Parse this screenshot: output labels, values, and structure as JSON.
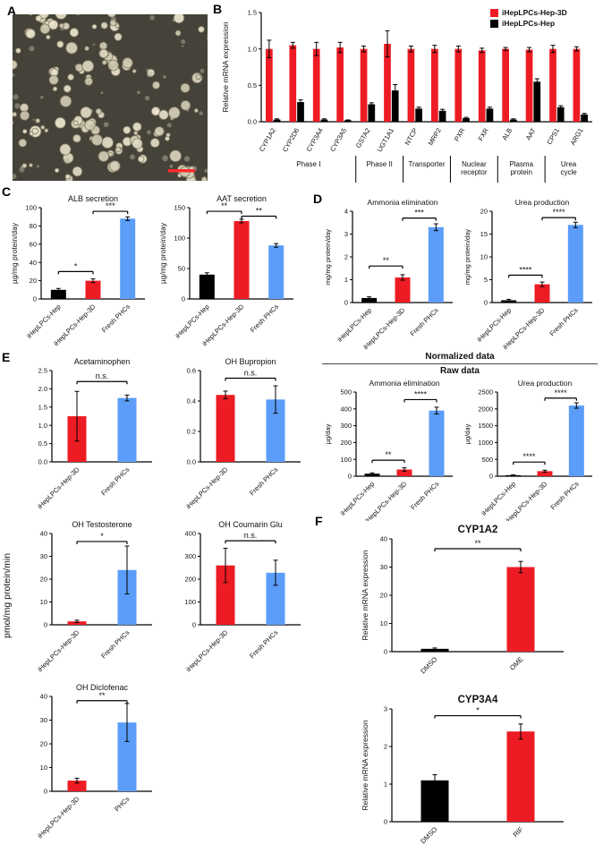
{
  "colors": {
    "red": "#ed1c24",
    "black": "#000000",
    "blue": "#5b9df8",
    "scalebar": "#ff2a2a"
  },
  "panels": {
    "A": {
      "label": "A"
    },
    "B": {
      "label": "B"
    },
    "C": {
      "label": "C"
    },
    "D": {
      "label": "D",
      "section_normalized": "Normalized data",
      "section_raw": "Raw data"
    },
    "E": {
      "label": "E",
      "shared_ylabel": "pmol/mg protein/min"
    },
    "F": {
      "label": "F"
    }
  },
  "legend": {
    "items": [
      {
        "label": "iHepLPCs-Hep-3D",
        "color": "red"
      },
      {
        "label": "iHepLPCs-Hep",
        "color": "black"
      }
    ]
  },
  "chart_data": [
    {
      "id": "B",
      "type": "bar",
      "title": "",
      "ylabel": "Relative mRNA expression",
      "ylim": [
        0,
        1.5
      ],
      "yticks": [
        0,
        0.5,
        1.0,
        1.5
      ],
      "ytick_labels": [
        "0.0",
        "0.5",
        "1.0",
        "1.5"
      ],
      "categories": [
        "CYP1A2",
        "CYP2D6",
        "CYP3A4",
        "CYP3A5",
        "GSTA2",
        "UGT1A1",
        "NTCP",
        "MRP2",
        "PXR",
        "FXR",
        "ALB",
        "AAT",
        "CPS1",
        "ARG1"
      ],
      "series": [
        {
          "name": "iHepLPCs-Hep-3D",
          "color": "red",
          "values": [
            1.0,
            1.05,
            1.0,
            1.02,
            1.0,
            1.07,
            1.0,
            1.0,
            1.0,
            0.98,
            1.0,
            0.99,
            1.0,
            1.0
          ],
          "errors": [
            0.12,
            0.04,
            0.09,
            0.07,
            0.04,
            0.18,
            0.04,
            0.05,
            0.04,
            0.03,
            0.02,
            0.03,
            0.05,
            0.03
          ]
        },
        {
          "name": "iHepLPCs-Hep",
          "color": "black",
          "values": [
            0.03,
            0.27,
            0.03,
            0.02,
            0.24,
            0.43,
            0.18,
            0.15,
            0.05,
            0.18,
            0.03,
            0.55,
            0.2,
            0.1
          ],
          "errors": [
            0.01,
            0.03,
            0.01,
            0.005,
            0.02,
            0.08,
            0.02,
            0.02,
            0.01,
            0.02,
            0.01,
            0.04,
            0.02,
            0.015
          ]
        }
      ],
      "groups": [
        {
          "label": "Phase I",
          "from": 0,
          "to": 3
        },
        {
          "label": "Phase II",
          "from": 4,
          "to": 5
        },
        {
          "label": "Transporter",
          "from": 6,
          "to": 7
        },
        {
          "label": "Nuclear\nreceptor",
          "from": 8,
          "to": 9
        },
        {
          "label": "Plasma\nprotein",
          "from": 10,
          "to": 11
        },
        {
          "label": "Urea\ncycle",
          "from": 12,
          "to": 13
        }
      ]
    },
    {
      "id": "C1",
      "type": "bar",
      "title": "ALB secretion",
      "ylabel": "µg/mg protein/day",
      "ylim": [
        0,
        100
      ],
      "yticks": [
        0,
        20,
        40,
        60,
        80,
        100
      ],
      "ytick_labels": [
        "0",
        "20",
        "40",
        "60",
        "80",
        "100"
      ],
      "categories": [
        "iHepLPCs-Hep",
        "iHepLPCs-Hep-3D",
        "Fresh PHCs"
      ],
      "values": [
        10,
        20,
        88
      ],
      "errors": [
        1.5,
        2,
        2
      ],
      "colors": [
        "black",
        "red",
        "blue"
      ],
      "sig": [
        {
          "a": 0,
          "b": 1,
          "label": "*",
          "y": 30
        },
        {
          "a": 1,
          "b": 2,
          "label": "***",
          "y": 96
        }
      ]
    },
    {
      "id": "C2",
      "type": "bar",
      "title": "AAT secretion",
      "ylabel": "µg/mg protein/day",
      "ylim": [
        0,
        150
      ],
      "yticks": [
        0,
        50,
        100,
        150
      ],
      "ytick_labels": [
        "0",
        "50",
        "100",
        "150"
      ],
      "categories": [
        "iHepLPCs-Hep",
        "iHepLPCs-Hep-3D",
        "Fresh PHCs"
      ],
      "values": [
        40,
        128,
        88
      ],
      "errors": [
        3,
        3,
        3
      ],
      "colors": [
        "black",
        "red",
        "blue"
      ],
      "sig": [
        {
          "a": 0,
          "b": 1,
          "label": "**",
          "y": 144
        },
        {
          "a": 1,
          "b": 2,
          "label": "**",
          "y": 136
        }
      ]
    },
    {
      "id": "D1",
      "type": "bar",
      "title": "Ammonia elimination",
      "ylabel": "mg/mg protein/day",
      "ylim": [
        0,
        4
      ],
      "yticks": [
        0,
        1,
        2,
        3,
        4
      ],
      "ytick_labels": [
        "0",
        "1",
        "2",
        "3",
        "4"
      ],
      "categories": [
        "iHepLPCs-Hep",
        "iHepLPCs-Hep-3D",
        "Fresh PHCs"
      ],
      "values": [
        0.2,
        1.1,
        3.3
      ],
      "errors": [
        0.05,
        0.12,
        0.15
      ],
      "colors": [
        "black",
        "red",
        "blue"
      ],
      "sig": [
        {
          "a": 0,
          "b": 1,
          "label": "**",
          "y": 1.6
        },
        {
          "a": 1,
          "b": 2,
          "label": "***",
          "y": 3.7
        }
      ]
    },
    {
      "id": "D2",
      "type": "bar",
      "title": "Urea production",
      "ylabel": "mg/mg protein/day",
      "ylim": [
        0,
        20
      ],
      "yticks": [
        0,
        5,
        10,
        15,
        20
      ],
      "ytick_labels": [
        "0",
        "5",
        "10",
        "15",
        "20"
      ],
      "categories": [
        "iHepLPCs-Hep",
        "iHepLPCs-Hep-3D",
        "Fresh PHCs"
      ],
      "values": [
        0.5,
        4,
        17
      ],
      "errors": [
        0.2,
        0.5,
        0.6
      ],
      "colors": [
        "black",
        "red",
        "blue"
      ],
      "sig": [
        {
          "a": 0,
          "b": 1,
          "label": "****",
          "y": 6
        },
        {
          "a": 1,
          "b": 2,
          "label": "****",
          "y": 18.6
        }
      ]
    },
    {
      "id": "D3",
      "type": "bar",
      "title": "Ammonia elimination",
      "ylabel": "µg/day",
      "ylim": [
        0,
        500
      ],
      "yticks": [
        0,
        100,
        200,
        300,
        400,
        500
      ],
      "ytick_labels": [
        "0",
        "100",
        "200",
        "300",
        "400",
        "500"
      ],
      "categories": [
        "iHepLPCs-Hep",
        "iHepLPCs-Hep-3D",
        "Fresh PHCs"
      ],
      "values": [
        15,
        40,
        390
      ],
      "errors": [
        5,
        10,
        20
      ],
      "colors": [
        "black",
        "red",
        "blue"
      ],
      "sig": [
        {
          "a": 0,
          "b": 1,
          "label": "**",
          "y": 95
        },
        {
          "a": 1,
          "b": 2,
          "label": "****",
          "y": 455
        }
      ]
    },
    {
      "id": "D4",
      "type": "bar",
      "title": "Urea production",
      "ylabel": "µg/day",
      "ylim": [
        0,
        2500
      ],
      "yticks": [
        0,
        500,
        1000,
        1500,
        2000,
        2500
      ],
      "ytick_labels": [
        "0",
        "500",
        "1000",
        "1500",
        "2000",
        "2500"
      ],
      "categories": [
        "iHepLPCs-Hep",
        "iHepLPCs-Hep-3D",
        "Fresh PHCs"
      ],
      "values": [
        30,
        150,
        2100
      ],
      "errors": [
        10,
        30,
        80
      ],
      "colors": [
        "black",
        "red",
        "blue"
      ],
      "sig": [
        {
          "a": 0,
          "b": 1,
          "label": "****",
          "y": 420
        },
        {
          "a": 1,
          "b": 2,
          "label": "****",
          "y": 2320
        }
      ]
    },
    {
      "id": "E1",
      "type": "bar",
      "title": "Acetaminophen",
      "ylabel": "",
      "ylim": [
        0,
        2.5
      ],
      "yticks": [
        0,
        0.5,
        1.0,
        1.5,
        2.0,
        2.5
      ],
      "ytick_labels": [
        "0.0",
        "0.5",
        "1.0",
        "1.5",
        "2.0",
        "2.5"
      ],
      "categories": [
        "iHepLPCs-Hep-3D",
        "Fresh PHCs"
      ],
      "values": [
        1.25,
        1.75
      ],
      "errors": [
        0.68,
        0.08
      ],
      "colors": [
        "red",
        "blue"
      ],
      "sig": [
        {
          "a": 0,
          "b": 1,
          "label": "n.s.",
          "y": 2.2
        }
      ]
    },
    {
      "id": "E2",
      "type": "bar",
      "title": "OH Bupropion",
      "ylabel": "",
      "ylim": [
        0,
        0.6
      ],
      "yticks": [
        0,
        0.2,
        0.4,
        0.6
      ],
      "ytick_labels": [
        "0.0",
        "0.2",
        "0.4",
        "0.6"
      ],
      "categories": [
        "iHepLPCs-Hep-3D",
        "Fresh PHCs"
      ],
      "values": [
        0.44,
        0.41
      ],
      "errors": [
        0.025,
        0.09
      ],
      "colors": [
        "red",
        "blue"
      ],
      "sig": [
        {
          "a": 0,
          "b": 1,
          "label": "n.s.",
          "y": 0.55
        }
      ]
    },
    {
      "id": "E3",
      "type": "bar",
      "title": "OH Testosterone",
      "ylabel": "",
      "ylim": [
        0,
        40
      ],
      "yticks": [
        0,
        10,
        20,
        30,
        40
      ],
      "ytick_labels": [
        "0",
        "10",
        "20",
        "30",
        "40"
      ],
      "categories": [
        "iHepLPCs-Hep-3D",
        "Fresh PHCs"
      ],
      "values": [
        1.5,
        24
      ],
      "errors": [
        0.5,
        10.5
      ],
      "colors": [
        "red",
        "blue"
      ],
      "sig": [
        {
          "a": 0,
          "b": 1,
          "label": "*",
          "y": 36.5
        }
      ]
    },
    {
      "id": "E4",
      "type": "bar",
      "title": "OH Coumarin Glu",
      "ylabel": "",
      "ylim": [
        0,
        400
      ],
      "yticks": [
        0,
        100,
        200,
        300,
        400
      ],
      "ytick_labels": [
        "0",
        "100",
        "200",
        "300",
        "400"
      ],
      "categories": [
        "iHepLPCs-Hep-3D",
        "Fresh PHCs"
      ],
      "values": [
        260,
        228
      ],
      "errors": [
        75,
        55
      ],
      "colors": [
        "red",
        "blue"
      ],
      "sig": [
        {
          "a": 0,
          "b": 1,
          "label": "n.s.",
          "y": 368
        }
      ]
    },
    {
      "id": "E5",
      "type": "bar",
      "title": "OH Diclofenac",
      "ylabel": "",
      "ylim": [
        0,
        40
      ],
      "yticks": [
        0,
        10,
        20,
        30,
        40
      ],
      "ytick_labels": [
        "0",
        "10",
        "20",
        "30",
        "40"
      ],
      "categories": [
        "iHepLPCs-Hep-3D",
        "PHCs"
      ],
      "values": [
        4.5,
        29
      ],
      "errors": [
        1,
        8
      ],
      "colors": [
        "red",
        "blue"
      ],
      "sig": [
        {
          "a": 0,
          "b": 1,
          "label": "**",
          "y": 38.2
        }
      ]
    },
    {
      "id": "F1",
      "type": "bar",
      "title": "CYP1A2",
      "ylabel": "Relative mRNA expression",
      "ylim": [
        0,
        40
      ],
      "yticks": [
        0,
        10,
        20,
        30,
        40
      ],
      "ytick_labels": [
        "0",
        "10",
        "20",
        "30",
        "40"
      ],
      "categories": [
        "DMSO",
        "OME"
      ],
      "values": [
        1,
        30
      ],
      "errors": [
        0.3,
        2
      ],
      "colors": [
        "black",
        "red"
      ],
      "sig": [
        {
          "a": 0,
          "b": 1,
          "label": "**",
          "y": 36.5
        }
      ]
    },
    {
      "id": "F2",
      "type": "bar",
      "title": "CYP3A4",
      "ylabel": "Relative mRNA expression",
      "ylim": [
        0,
        3
      ],
      "yticks": [
        0,
        1,
        2,
        3
      ],
      "ytick_labels": [
        "0",
        "1",
        "2",
        "3"
      ],
      "categories": [
        "DMSO",
        "RIF"
      ],
      "values": [
        1.1,
        2.4
      ],
      "errors": [
        0.15,
        0.2
      ],
      "colors": [
        "black",
        "red"
      ],
      "sig": [
        {
          "a": 0,
          "b": 1,
          "label": "*",
          "y": 2.82
        }
      ]
    }
  ]
}
